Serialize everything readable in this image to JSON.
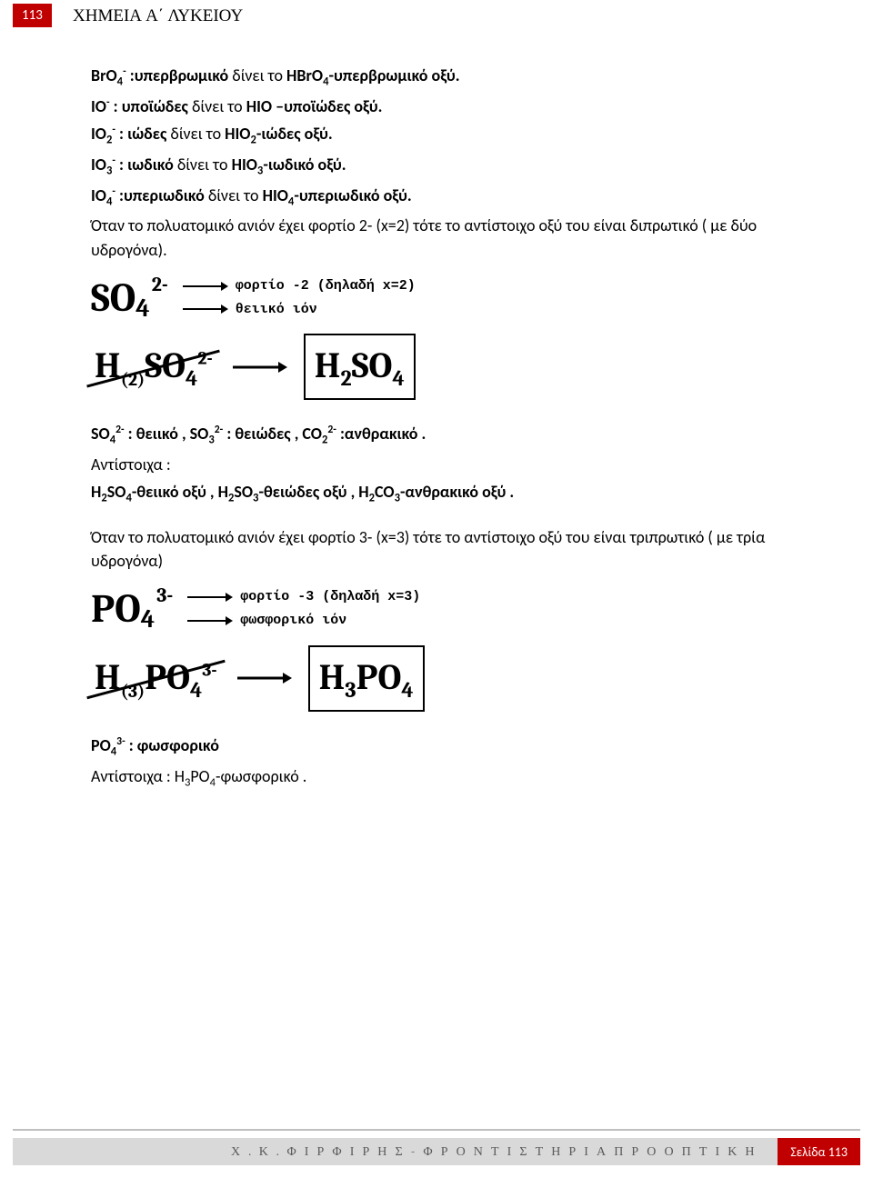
{
  "page": {
    "tab_number": "113",
    "header": "ΧΗΜΕΙΑ Α΄ ΛΥΚΕΙΟΥ"
  },
  "intro_lines": {
    "bro4": {
      "ion_html": "BrO<sub>4</sub><sup>-</sup>",
      "name": ":υπερβρωμικό",
      "mid": "δίνει το",
      "acid": "HBrO<sub>4</sub>-υπερβρωμικό οξύ."
    },
    "io": {
      "ion_html": "IO<sup>-</sup>",
      "name": ": υποϊώδες",
      "mid": "δίνει το",
      "acid": "ΗΙΟ –υποϊώδες οξύ."
    },
    "io2": {
      "ion_html": "IO<sub>2</sub><sup>-</sup>",
      "name": ": ιώδες",
      "mid": "δίνει το",
      "acid": "ΗΙΟ<sub>2</sub>-ιώδες οξύ."
    },
    "io3": {
      "ion_html": "IO<sub>3</sub><sup>-</sup>",
      "name": ": ιωδικό",
      "mid": "δίνει το",
      "acid": "ΗΙΟ<sub>3</sub>-ιωδικό οξύ."
    },
    "io4": {
      "ion_html": "IO<sub>4</sub><sup>-</sup>",
      "name": ":υπεριωδικό",
      "mid": "δίνει το",
      "acid": "ΗΙΟ<sub>4</sub>-υπεριωδικό οξύ."
    }
  },
  "para_x2": "Όταν το πολυατομικό ανιόν έχει φορτίο 2- (x=2) τότε το αντίστοιχο οξύ του είναι διπρωτικό ( με δύο υδρογόνα).",
  "so4": {
    "base": "SO",
    "sub": "4",
    "charge": "2-",
    "arrow1_label": "φορτίο -2 (δηλαδή x=2)",
    "arrow2_label": "θειικό ιόν",
    "h_left_main": "H",
    "h_left_sub": "(2)",
    "h_left_rest": "SO",
    "h_left_rest_sub": "4",
    "h_left_charge": "2-",
    "box_formula": "H",
    "box_sub1": "2",
    "box_rest": "SO",
    "box_sub2": "4"
  },
  "ion_list_2": {
    "t1": "SO<sub>4</sub><sup>2-</sup> : θειικό , SO<sub>3</sub><sup>2-</sup> : θειώδες ,   CO<sub>2</sub><sup>2-</sup> :ανθρακικό .",
    "t2": "Αντίστοιχα :",
    "t3": "Η<sub>2</sub>SO<sub>4</sub>-θειικό οξύ  ,  Η<sub>2</sub>SO<sub>3</sub>-θειώδες οξύ , Η<sub>2</sub>CO<sub>3</sub>-ανθρακικό οξύ ."
  },
  "para_x3": "Όταν το πολυατομικό ανιόν έχει φορτίο 3- (x=3) τότε το αντίστοιχο οξύ του είναι τριπρωτικό ( με τρία υδρογόνα)",
  "po4": {
    "base": "PO",
    "sub": "4",
    "charge": "3-",
    "arrow1_label": "φορτίο -3 (δηλαδή x=3)",
    "arrow2_label": "φωσφορικό ιόν",
    "h_left_main": "H",
    "h_left_sub": "(3)",
    "h_left_rest": "PO",
    "h_left_rest_sub": "4",
    "h_left_charge": "3-",
    "box_formula": "H",
    "box_sub1": "3",
    "box_rest": "PO",
    "box_sub2": "4"
  },
  "ion_list_3": {
    "t1": "PO<sub>4</sub><sup>3-</sup> : φωσφορικό",
    "t2": "Αντίστοιχα : Η<sub>3</sub>PO<sub>4</sub>-φωσφορικό ."
  },
  "footer": {
    "left": "Χ . Κ . Φ Ι Ρ Φ Ι Ρ Η Σ - Φ Ρ Ο Ν Τ Ι Σ Τ Η Ρ Ι Α   Π Ρ Ο Ο Π Τ Ι Κ Η",
    "right": "Σελίδα 113"
  },
  "style": {
    "brand_color": "#c00000",
    "footer_bg": "#d9d9d9",
    "text_color": "#000000"
  }
}
